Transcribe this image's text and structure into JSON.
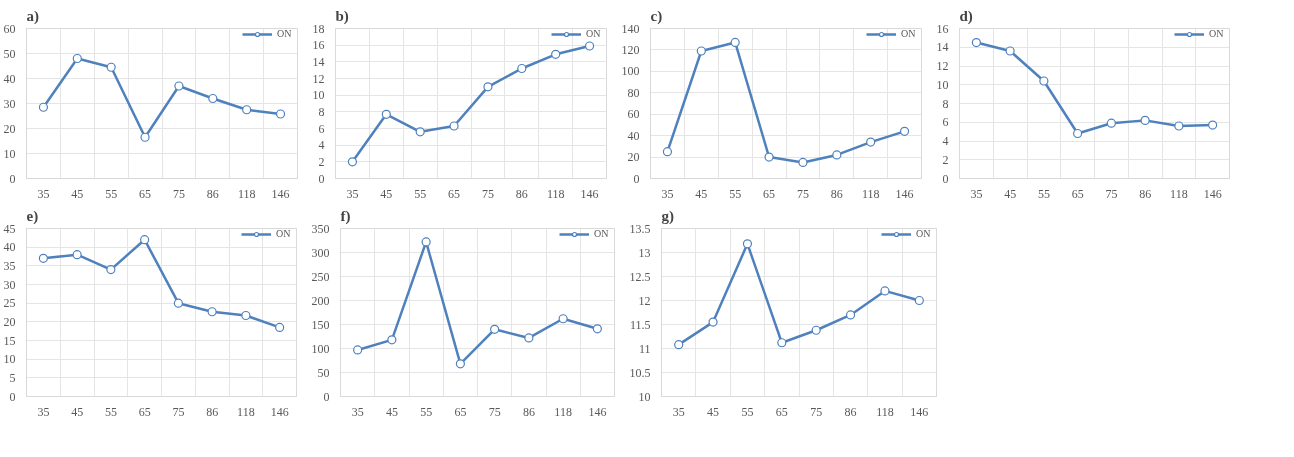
{
  "chart_data": [
    {
      "type": "line",
      "title": "a)",
      "categories": [
        "35",
        "45",
        "55",
        "65",
        "75",
        "86",
        "118",
        "146"
      ],
      "series": [
        {
          "name": "ON",
          "color": "#4f81bd",
          "values": [
            28.5,
            48,
            44.5,
            16.5,
            37,
            32,
            27.5,
            25.8
          ]
        }
      ],
      "ylim": [
        0,
        60
      ],
      "yticks": [
        0,
        10,
        20,
        30,
        40,
        50,
        60
      ],
      "grid": true,
      "legend": "top right",
      "marker": "circle"
    },
    {
      "type": "line",
      "title": "b)",
      "categories": [
        "35",
        "45",
        "55",
        "65",
        "75",
        "86",
        "118",
        "146"
      ],
      "series": [
        {
          "name": "ON",
          "color": "#4f81bd",
          "values": [
            2,
            7.7,
            5.6,
            6.3,
            11,
            13.2,
            14.9,
            15.9
          ]
        }
      ],
      "ylim": [
        0,
        18
      ],
      "yticks": [
        0,
        2,
        4,
        6,
        8,
        10,
        12,
        14,
        16,
        18
      ],
      "grid": true,
      "legend": "top right",
      "marker": "circle"
    },
    {
      "type": "line",
      "title": "c)",
      "categories": [
        "35",
        "45",
        "55",
        "65",
        "75",
        "86",
        "118",
        "146"
      ],
      "series": [
        {
          "name": "ON",
          "color": "#4f81bd",
          "values": [
            25,
            119,
            127,
            20,
            15,
            22,
            34,
            44
          ]
        }
      ],
      "ylim": [
        0,
        140
      ],
      "yticks": [
        0,
        20,
        40,
        60,
        80,
        100,
        120,
        140
      ],
      "grid": true,
      "legend": "top right",
      "marker": "circle"
    },
    {
      "type": "line",
      "title": "d)",
      "categories": [
        "35",
        "45",
        "55",
        "65",
        "75",
        "86",
        "118",
        "146"
      ],
      "series": [
        {
          "name": "ON",
          "color": "#4f81bd",
          "values": [
            14.5,
            13.6,
            10.4,
            4.8,
            5.9,
            6.2,
            5.6,
            5.7
          ]
        }
      ],
      "ylim": [
        0,
        16
      ],
      "yticks": [
        0,
        2,
        4,
        6,
        8,
        10,
        12,
        14,
        16
      ],
      "grid": true,
      "legend": "top right",
      "marker": "circle"
    },
    {
      "type": "line",
      "title": "e)",
      "categories": [
        "35",
        "45",
        "55",
        "65",
        "75",
        "86",
        "118",
        "146"
      ],
      "series": [
        {
          "name": "ON",
          "color": "#4f81bd",
          "values": [
            37,
            38,
            34,
            42,
            25,
            22.7,
            21.7,
            18.5
          ]
        }
      ],
      "ylim": [
        0,
        45
      ],
      "yticks": [
        0,
        5,
        10,
        15,
        20,
        25,
        30,
        35,
        40,
        45
      ],
      "grid": true,
      "legend": "top right",
      "marker": "circle"
    },
    {
      "type": "line",
      "title": "f)",
      "categories": [
        "35",
        "45",
        "55",
        "65",
        "75",
        "86",
        "118",
        "146"
      ],
      "series": [
        {
          "name": "ON",
          "color": "#4f81bd",
          "values": [
            97,
            118,
            322,
            68,
            140,
            122,
            162,
            141
          ]
        }
      ],
      "ylim": [
        0,
        350
      ],
      "yticks": [
        0,
        50,
        100,
        150,
        200,
        250,
        300,
        350
      ],
      "grid": true,
      "legend": "top right",
      "marker": "circle"
    },
    {
      "type": "line",
      "title": "g)",
      "categories": [
        "35",
        "45",
        "55",
        "65",
        "75",
        "86",
        "118",
        "146"
      ],
      "series": [
        {
          "name": "ON",
          "color": "#4f81bd",
          "values": [
            11.08,
            11.55,
            13.18,
            11.12,
            11.38,
            11.7,
            12.2,
            12.0
          ]
        }
      ],
      "ylim": [
        10,
        13.5
      ],
      "yticks": [
        10,
        10.5,
        11,
        11.5,
        12,
        12.5,
        13,
        13.5
      ],
      "grid": true,
      "legend": "top right",
      "marker": "circle"
    }
  ]
}
